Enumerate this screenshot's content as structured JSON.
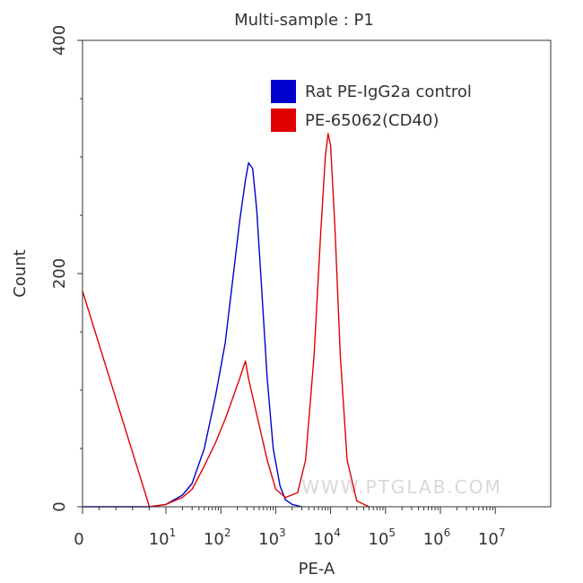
{
  "chart_data": {
    "type": "line",
    "title": "Multi-sample : P1",
    "xlabel": "PE-A",
    "ylabel": "Count",
    "x_scale": "log",
    "xlim": [
      0,
      10000000
    ],
    "ylim": [
      0,
      400
    ],
    "x_ticks": [
      {
        "base": "0",
        "exp": ""
      },
      {
        "base": "10",
        "exp": "1"
      },
      {
        "base": "10",
        "exp": "2"
      },
      {
        "base": "10",
        "exp": "3"
      },
      {
        "base": "10",
        "exp": "4"
      },
      {
        "base": "10",
        "exp": "5"
      },
      {
        "base": "10",
        "exp": "6"
      },
      {
        "base": "10",
        "exp": "7"
      }
    ],
    "y_ticks": [
      "0",
      "200",
      "400"
    ],
    "legend_position": "top-right",
    "watermark": "WWW.PTGLAB.COM",
    "series": [
      {
        "name": "Rat PE-IgG2a control",
        "color": "#0000cc",
        "x": [
          0,
          5,
          10,
          20,
          30,
          50,
          80,
          120,
          170,
          220,
          280,
          320,
          380,
          450,
          550,
          700,
          900,
          1200,
          1500,
          2000,
          3000
        ],
        "y": [
          0,
          0,
          2,
          10,
          20,
          50,
          95,
          140,
          200,
          245,
          280,
          295,
          290,
          255,
          190,
          110,
          50,
          18,
          6,
          2,
          0
        ]
      },
      {
        "name": "PE-65062(CD40)",
        "color": "#e00000",
        "x": [
          0,
          5,
          10,
          20,
          30,
          50,
          80,
          120,
          170,
          220,
          280,
          320,
          400,
          500,
          700,
          1000,
          1500,
          2500,
          3500,
          5000,
          6500,
          8000,
          9000,
          10000,
          12000,
          15000,
          20000,
          30000,
          50000
        ],
        "y": [
          185,
          0,
          2,
          8,
          15,
          35,
          55,
          75,
          95,
          110,
          125,
          110,
          90,
          70,
          40,
          15,
          8,
          12,
          40,
          130,
          230,
          300,
          320,
          310,
          240,
          130,
          40,
          5,
          0
        ]
      }
    ]
  }
}
